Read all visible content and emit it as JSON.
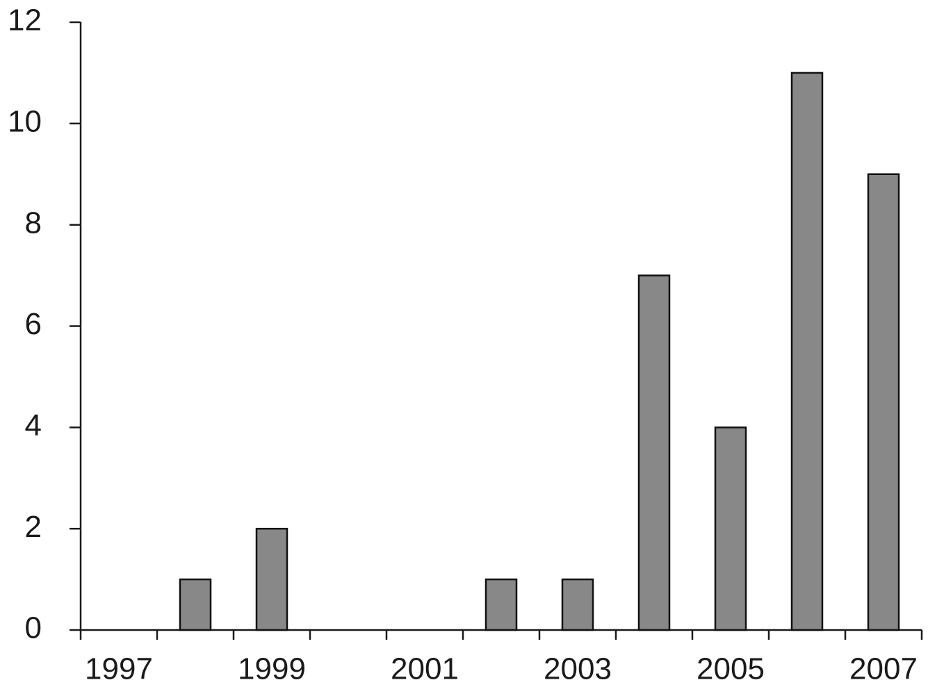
{
  "chart_data": {
    "type": "bar",
    "categories": [
      "1997",
      null,
      "1999",
      null,
      "2001",
      null,
      "2003",
      null,
      "2005",
      null,
      "2007"
    ],
    "values": [
      0,
      1,
      2,
      0,
      0,
      1,
      1,
      7,
      4,
      11,
      9
    ],
    "color": "#888888",
    "ylim": [
      0,
      12
    ],
    "yticks": [
      0,
      2,
      4,
      6,
      8,
      10,
      12
    ]
  }
}
